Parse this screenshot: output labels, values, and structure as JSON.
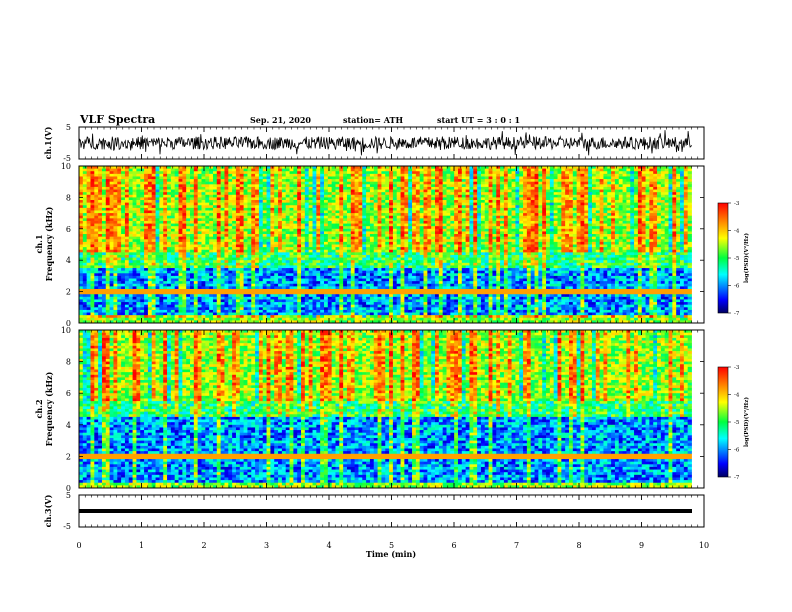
{
  "header": {
    "title": "VLF Spectra",
    "date": "Sep. 21, 2020",
    "station": "station= ATH",
    "start": "start UT =  3 : 0 : 1"
  },
  "colors": {
    "dark_blue": "#00008b",
    "blue": "#0000ff",
    "cyan": "#00ffff",
    "green": "#00ff40",
    "yellow": "#ffff00",
    "orange": "#ff8000",
    "red": "#ff0000",
    "trace": "#000000"
  },
  "chart_data": [
    {
      "type": "line",
      "panel": "ch1-waveform",
      "ylabel": "ch.1(V)",
      "ylim": [
        -5,
        5
      ],
      "y_ticks": [
        "5",
        "-5"
      ],
      "x_range": [
        0,
        10
      ],
      "description_values": {
        "baseline": 0,
        "amplitude_typical": 2,
        "data_until_min": 9.8
      }
    },
    {
      "type": "heatmap",
      "panel": "ch1-spectrogram",
      "ylabel": "ch.1\nFrequency (kHz)",
      "ylim": [
        0,
        10
      ],
      "y_ticks": [
        "0",
        "2",
        "4",
        "6",
        "8",
        "10"
      ],
      "colorbar": {
        "label": "log(PSD)(V²/Hz)",
        "ticks": [
          "-3",
          "-4",
          "-5",
          "-6",
          "-7"
        ],
        "range": [
          -7,
          -3
        ]
      }
    },
    {
      "type": "heatmap",
      "panel": "ch2-spectrogram",
      "ylabel": "ch.2\nFrequency (kHz)",
      "ylim": [
        0,
        10
      ],
      "y_ticks": [
        "0",
        "2",
        "4",
        "6",
        "8",
        "10"
      ],
      "colorbar": {
        "label": "log(PSD)(V²/Hz)",
        "ticks": [
          "-3",
          "-4",
          "-5",
          "-6",
          "-7"
        ],
        "range": [
          -7,
          -3
        ]
      }
    },
    {
      "type": "line",
      "panel": "ch3-waveform",
      "ylabel": "ch.3(V)",
      "ylim": [
        -5,
        5
      ],
      "y_ticks": [
        "5",
        "-5"
      ],
      "x_range": [
        0,
        10
      ],
      "description_values": {
        "baseline": 0
      }
    }
  ],
  "x_axis": {
    "label": "Time (min)",
    "ticks": [
      "0",
      "1",
      "2",
      "3",
      "4",
      "5",
      "6",
      "7",
      "8",
      "9",
      "10"
    ],
    "range": [
      0,
      10
    ]
  },
  "spectrogram_levels": {
    "ch1": {
      "data_until_min": 9.8,
      "noise_band_khz": [
        0.5,
        3.5
      ],
      "hum_line_khz": 2.0
    },
    "ch2": {
      "data_until_min": 9.8,
      "noise_band_khz": [
        0.3,
        4.5
      ],
      "hum_line_khz": 2.0
    }
  }
}
